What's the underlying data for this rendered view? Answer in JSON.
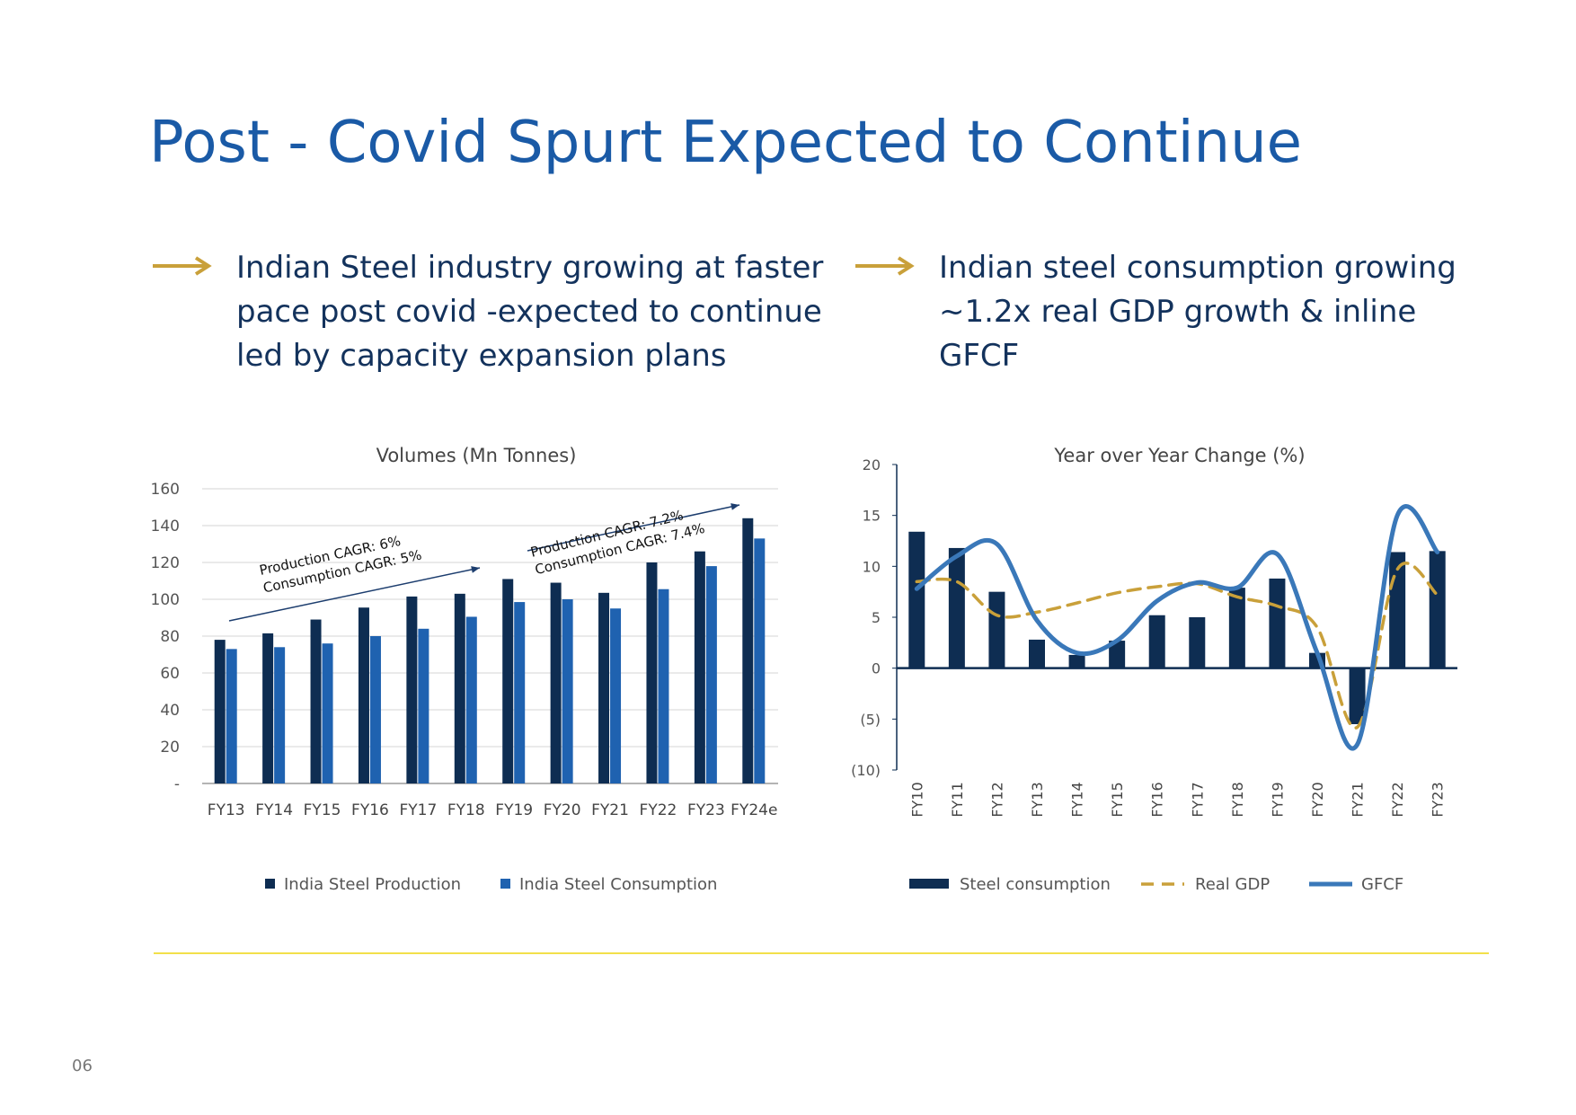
{
  "title": "Post - Covid Spurt Expected to Continue",
  "bullets": [
    {
      "lines": [
        "Indian Steel industry growing at faster",
        "pace post covid -expected to continue",
        "led by capacity expansion plans"
      ]
    },
    {
      "lines": [
        "Indian steel consumption growing",
        "~1.2x real GDP growth & inline",
        "GFCF"
      ]
    }
  ],
  "page_number": "06",
  "chart_data": [
    {
      "type": "bar",
      "title": "Volumes (Mn Tonnes)",
      "categories": [
        "FY13",
        "FY14",
        "FY15",
        "FY16",
        "FY17",
        "FY18",
        "FY19",
        "FY20",
        "FY21",
        "FY22",
        "FY23",
        "FY24e"
      ],
      "series": [
        {
          "name": "India Steel Production",
          "color": "#0e2d52",
          "values": [
            78,
            81.5,
            89,
            95.5,
            101.5,
            103,
            111,
            109,
            103.5,
            120,
            126,
            144
          ]
        },
        {
          "name": "India Steel Consumption",
          "color": "#1f62b0",
          "values": [
            73,
            74,
            76,
            80,
            84,
            90.5,
            98.5,
            100,
            95,
            105.5,
            118,
            133
          ]
        }
      ],
      "ylim": [
        0,
        160
      ],
      "yticks": [
        {
          "value": 0,
          "label": "-"
        },
        20,
        40,
        60,
        80,
        100,
        120,
        140,
        160
      ],
      "grid": true,
      "annotations": [
        {
          "lines": [
            "Production CAGR: 6%",
            "Consumption CAGR: 5%"
          ]
        },
        {
          "lines": [
            "Production CAGR: 7.2%",
            "Consumption CAGR: 7.4%"
          ]
        }
      ]
    },
    {
      "type": "combo",
      "title": "Year over Year Change (%)",
      "categories": [
        "FY10",
        "FY11",
        "FY12",
        "FY13",
        "FY14",
        "FY15",
        "FY16",
        "FY17",
        "FY18",
        "FY19",
        "FY20",
        "FY21",
        "FY22",
        "FY23"
      ],
      "series": [
        {
          "name": "Steel consumption",
          "type": "bar",
          "color": "#0e2d52",
          "values": [
            13.4,
            11.8,
            7.5,
            2.8,
            1.3,
            2.7,
            5.2,
            5.0,
            7.9,
            8.8,
            1.5,
            -5.5,
            11.4,
            11.5
          ]
        },
        {
          "name": "Real GDP",
          "type": "line",
          "dashed": true,
          "color": "#c9a03a",
          "values": [
            8.5,
            8.5,
            5.2,
            5.5,
            6.4,
            7.4,
            8.0,
            8.3,
            7.0,
            6.1,
            4.0,
            -5.8,
            9.7,
            7.2
          ]
        },
        {
          "name": "GFCF",
          "type": "line",
          "dashed": false,
          "color": "#3a78b9",
          "values": [
            7.8,
            11.0,
            12.2,
            4.7,
            1.5,
            2.7,
            6.6,
            8.4,
            7.9,
            11.2,
            1.5,
            -7.5,
            15.0,
            11.4
          ]
        }
      ],
      "ylim": [
        -10,
        20
      ],
      "yticks": [
        {
          "value": -10,
          "label": "(10)"
        },
        {
          "value": -5,
          "label": "(5)"
        },
        0,
        5,
        10,
        15,
        20
      ],
      "grid": false
    }
  ]
}
